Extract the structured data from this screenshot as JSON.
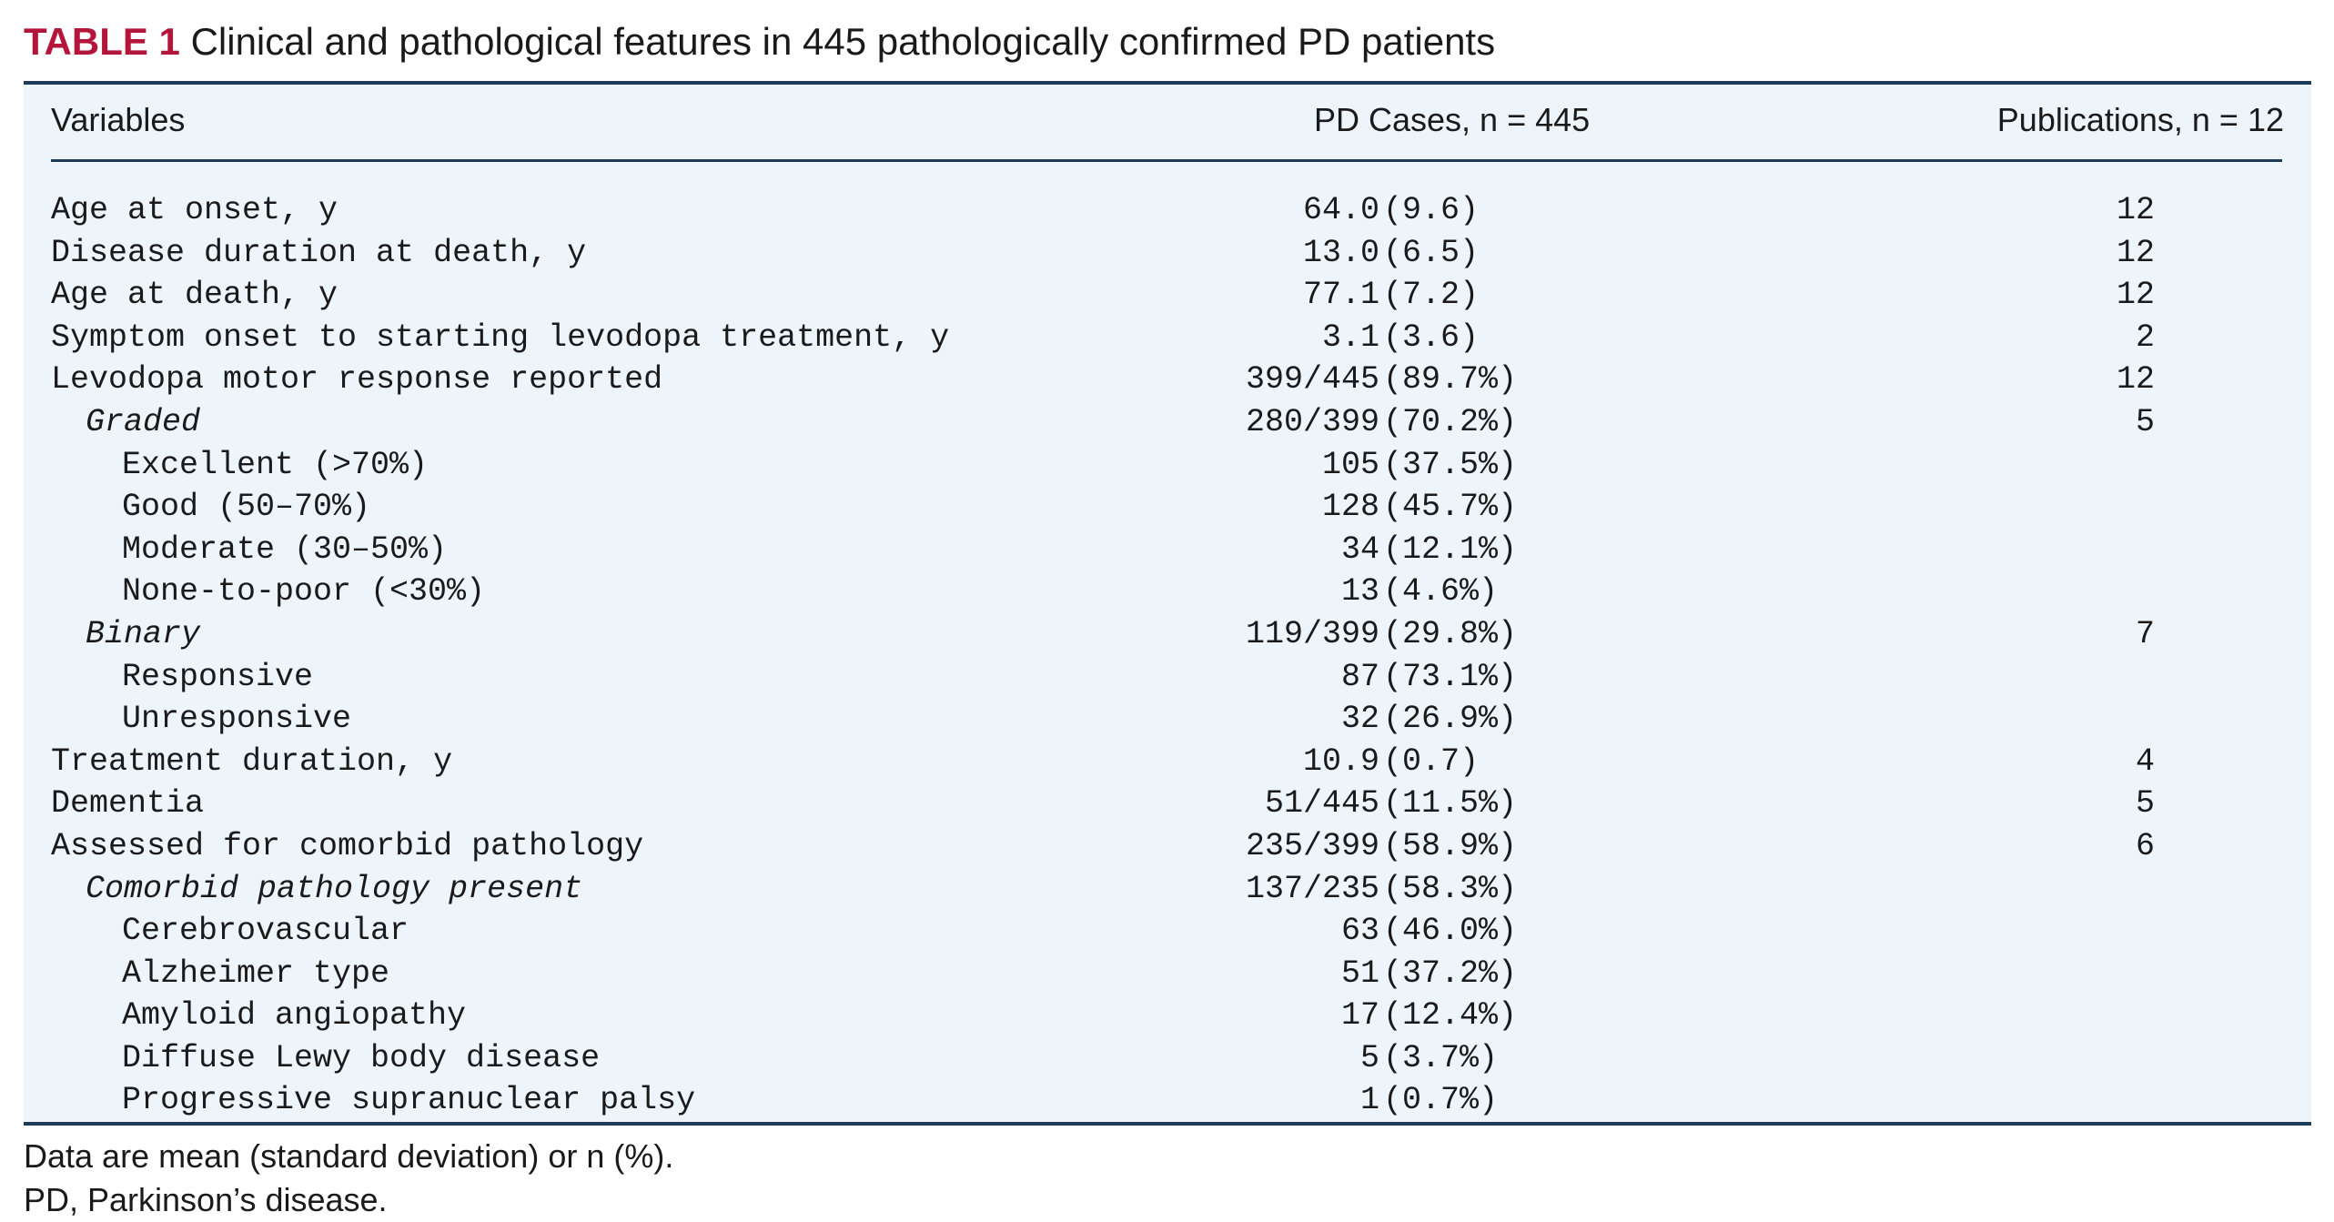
{
  "caption": {
    "label": "TABLE 1",
    "text": "Clinical and pathological features in 445 pathologically confirmed PD patients"
  },
  "header": {
    "variables": "Variables",
    "pd_cases": "PD Cases, n = 445",
    "publications": "Publications, n = 12"
  },
  "rows": [
    {
      "level": 0,
      "variable": "Age at onset, y",
      "value": "64.0",
      "paren": "(9.6)",
      "publications": "12"
    },
    {
      "level": 0,
      "variable": "Disease duration at death, y",
      "value": "13.0",
      "paren": "(6.5)",
      "publications": "12"
    },
    {
      "level": 0,
      "variable": "Age at death, y",
      "value": "77.1",
      "paren": "(7.2)",
      "publications": "12"
    },
    {
      "level": 0,
      "variable": "Symptom onset to starting levodopa treatment, y",
      "value": "3.1",
      "paren": "(3.6)",
      "publications": "2"
    },
    {
      "level": 0,
      "variable": "Levodopa motor response reported",
      "value": "399/445",
      "paren": "(89.7%)",
      "publications": "12"
    },
    {
      "level": 1,
      "variable": "Graded",
      "value": "280/399",
      "paren": "(70.2%)",
      "publications": "5"
    },
    {
      "level": 2,
      "variable": "Excellent (>70%)",
      "value": "105",
      "paren": "(37.5%)",
      "publications": ""
    },
    {
      "level": 2,
      "variable": "Good (50–70%)",
      "value": "128",
      "paren": "(45.7%)",
      "publications": ""
    },
    {
      "level": 2,
      "variable": "Moderate (30–50%)",
      "value": "34",
      "paren": "(12.1%)",
      "publications": ""
    },
    {
      "level": 2,
      "variable": "None-to-poor (<30%)",
      "value": "13",
      "paren": "(4.6%)",
      "publications": ""
    },
    {
      "level": 1,
      "variable": "Binary",
      "value": "119/399",
      "paren": "(29.8%)",
      "publications": "7"
    },
    {
      "level": 2,
      "variable": "Responsive",
      "value": "87",
      "paren": "(73.1%)",
      "publications": ""
    },
    {
      "level": 2,
      "variable": "Unresponsive",
      "value": "32",
      "paren": "(26.9%)",
      "publications": ""
    },
    {
      "level": 0,
      "variable": "Treatment duration, y",
      "value": "10.9",
      "paren": "(0.7)",
      "publications": "4"
    },
    {
      "level": 0,
      "variable": "Dementia",
      "value": "51/445",
      "paren": "(11.5%)",
      "publications": "5"
    },
    {
      "level": 0,
      "variable": "Assessed for comorbid pathology",
      "value": "235/399",
      "paren": "(58.9%)",
      "publications": "6"
    },
    {
      "level": 1,
      "variable": "Comorbid pathology present",
      "value": "137/235",
      "paren": "(58.3%)",
      "publications": ""
    },
    {
      "level": 2,
      "variable": "Cerebrovascular",
      "value": "63",
      "paren": "(46.0%)",
      "publications": ""
    },
    {
      "level": 2,
      "variable": "Alzheimer type",
      "value": "51",
      "paren": "(37.2%)",
      "publications": ""
    },
    {
      "level": 2,
      "variable": "Amyloid angiopathy",
      "value": "17",
      "paren": "(12.4%)",
      "publications": ""
    },
    {
      "level": 2,
      "variable": "Diffuse Lewy body disease",
      "value": "5",
      "paren": "(3.7%)",
      "publications": ""
    },
    {
      "level": 2,
      "variable": "Progressive supranuclear palsy",
      "value": "1",
      "paren": "(0.7%)",
      "publications": ""
    }
  ],
  "footnotes": [
    "Data are mean (standard deviation) or n (%).",
    "PD, Parkinson’s disease."
  ],
  "colors": {
    "label_accent": "#b3163a",
    "rule": "#1c3c5a",
    "table_background": "#edf5fb"
  }
}
